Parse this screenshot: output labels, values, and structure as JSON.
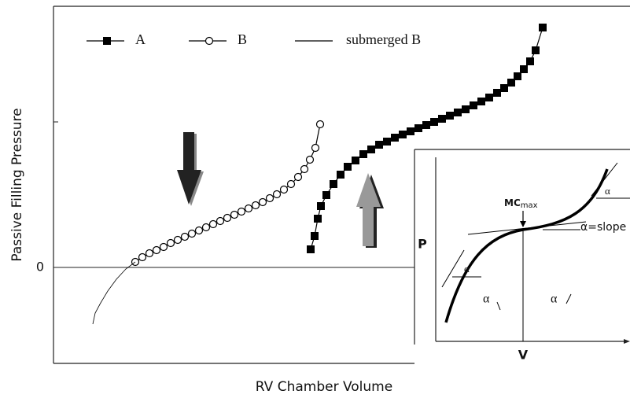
{
  "chart_data": {
    "type": "line",
    "y_label": "Passive Filling Pressure",
    "x_label": "RV Chamber Volume",
    "xlim": [
      0,
      732
    ],
    "ylim": [
      -122,
      332
    ],
    "yticks": [
      0,
      {
        "value": 185,
        "label": null
      }
    ],
    "series": [
      {
        "name": "A",
        "color": "#000000",
        "marker": "square",
        "x": [
          327,
          332,
          336,
          340,
          347,
          356,
          365,
          374,
          384,
          394,
          404,
          414,
          424,
          434,
          444,
          454,
          464,
          474,
          484,
          494,
          504,
          514,
          524,
          534,
          544,
          554,
          564,
          573,
          582,
          590,
          598,
          606,
          613,
          622
        ],
        "values": [
          23,
          40,
          62,
          78,
          92,
          106,
          118,
          128,
          136,
          144,
          150,
          156,
          160,
          165,
          169,
          173,
          177,
          181,
          185,
          189,
          193,
          197,
          201,
          206,
          211,
          216,
          222,
          228,
          235,
          243,
          252,
          262,
          276,
          305
        ]
      },
      {
        "name": "B",
        "color": "#000000",
        "marker": "circle",
        "x": [
          104,
          113,
          122,
          131,
          140,
          149,
          158,
          167,
          176,
          185,
          194,
          203,
          212,
          221,
          230,
          239,
          248,
          257,
          266,
          275,
          284,
          293,
          302,
          311,
          319,
          326,
          333,
          339
        ],
        "values": [
          7,
          13,
          18,
          22,
          26,
          31,
          35,
          39,
          43,
          47,
          51,
          55,
          59,
          63,
          67,
          71,
          75,
          79,
          83,
          88,
          93,
          99,
          106,
          115,
          125,
          137,
          152,
          182
        ]
      },
      {
        "name": "submerged B",
        "color": "#000000",
        "marker": "none",
        "x": [
          104,
          92,
          80,
          69,
          60,
          53,
          50
        ],
        "values": [
          7,
          -2,
          -15,
          -30,
          -45,
          -58,
          -72
        ]
      }
    ],
    "inset": {
      "y_label": "P",
      "x_label": "V",
      "marker": "MC",
      "marker_sub": "max",
      "alpha": "α",
      "slope_label": "α=slope"
    }
  }
}
